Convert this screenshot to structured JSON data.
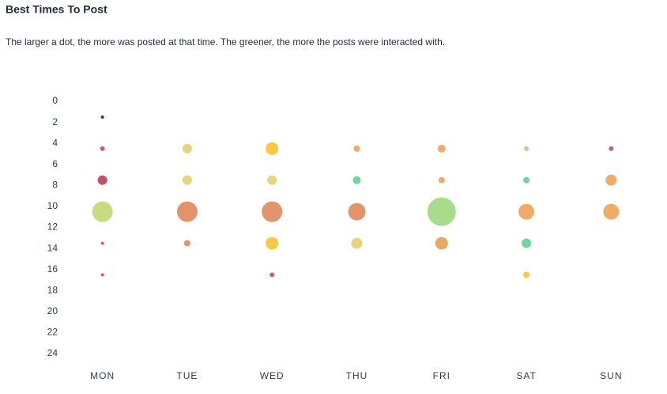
{
  "chart_data": {
    "type": "bubble",
    "title": "Best Times To Post",
    "subtitle": "The larger a dot, the more was posted at that time. The greener, the more the posts were interacted with.",
    "categories": [
      "MON",
      "TUE",
      "WED",
      "THU",
      "FRI",
      "SAT",
      "SUN"
    ],
    "ylim": [
      24,
      0
    ],
    "yticks": [
      0,
      2,
      4,
      6,
      8,
      10,
      12,
      14,
      16,
      18,
      20,
      22,
      24
    ],
    "series": [
      {
        "values": [
          1.5,
          4.5,
          7.5,
          10.5,
          13.5,
          16.5
        ],
        "sizes": [
          2,
          3,
          6,
          13,
          2,
          2
        ],
        "colors": [
          "#2d3a55",
          "#d05a6e",
          "#c94f66",
          "#c8dc7e",
          "#d05a6e",
          "#d05a6e"
        ]
      },
      {
        "values": [
          4.5,
          7.5,
          10.5,
          13.5
        ],
        "sizes": [
          6,
          6,
          13,
          4
        ],
        "colors": [
          "#e8d27a",
          "#e8d27a",
          "#e3936a",
          "#e3936a"
        ]
      },
      {
        "values": [
          4.5,
          7.5,
          10.5,
          13.5,
          16.5
        ],
        "sizes": [
          8,
          6,
          13,
          8,
          3
        ],
        "colors": [
          "#fbc840",
          "#e8d27a",
          "#e3936a",
          "#fbc840",
          "#d05a6e"
        ]
      },
      {
        "values": [
          4.5,
          7.5,
          10.5,
          13.5
        ],
        "sizes": [
          4,
          5,
          11,
          7
        ],
        "colors": [
          "#f0ab68",
          "#6dd69b",
          "#e3936a",
          "#e8d27a"
        ]
      },
      {
        "values": [
          4.5,
          7.5,
          10.5,
          13.5
        ],
        "sizes": [
          5,
          4,
          18,
          8
        ],
        "colors": [
          "#f0ab68",
          "#f0ab68",
          "#a6dc8a",
          "#eca766"
        ]
      },
      {
        "values": [
          4.5,
          7.5,
          10.5,
          13.5,
          16.5
        ],
        "sizes": [
          3,
          4,
          10,
          6,
          4
        ],
        "colors": [
          "#a6dc8a",
          "#6dd69b",
          "#f0ab68",
          "#6dd69b",
          "#fbc840"
        ]
      },
      {
        "values": [
          4.5,
          7.5,
          10.5
        ],
        "sizes": [
          3,
          7,
          10
        ],
        "colors": [
          "#d05a6e",
          "#f0ab68",
          "#f0ab68"
        ]
      }
    ]
  }
}
